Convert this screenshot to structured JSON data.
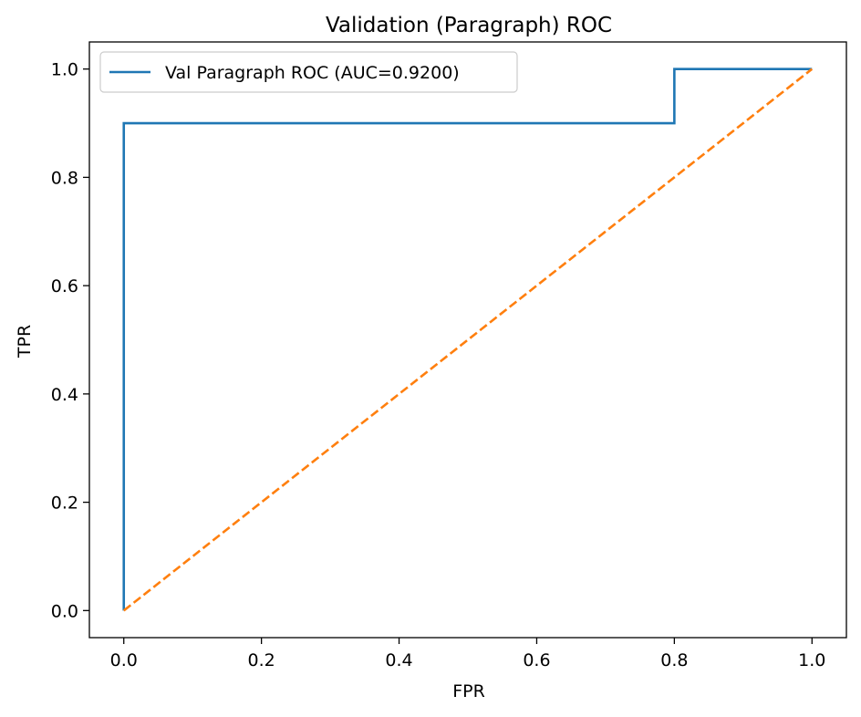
{
  "chart_data": {
    "type": "line",
    "title": "Validation (Paragraph) ROC",
    "xlabel": "FPR",
    "ylabel": "TPR",
    "xlim": [
      -0.05,
      1.05
    ],
    "ylim": [
      -0.05,
      1.05
    ],
    "xticks": [
      0.0,
      0.2,
      0.4,
      0.6,
      0.8,
      1.0
    ],
    "xtick_labels": [
      "0.0",
      "0.2",
      "0.4",
      "0.6",
      "0.8",
      "1.0"
    ],
    "yticks": [
      0.0,
      0.2,
      0.4,
      0.6,
      0.8,
      1.0
    ],
    "ytick_labels": [
      "0.0",
      "0.2",
      "0.4",
      "0.6",
      "0.8",
      "1.0"
    ],
    "grid": false,
    "legend_position": "top-left",
    "series": [
      {
        "name": "Val Paragraph ROC (AUC=0.9200)",
        "color": "#1f77b4",
        "line_style": "solid",
        "show_in_legend": true,
        "x": [
          0.0,
          0.0,
          0.0,
          0.8,
          0.8,
          1.0
        ],
        "y": [
          0.0,
          0.9,
          0.9,
          0.9,
          1.0,
          1.0
        ]
      },
      {
        "color": "#ff7f0e",
        "line_style": "dashed",
        "show_in_legend": false,
        "x": [
          0.0,
          1.0
        ],
        "y": [
          0.0,
          1.0
        ]
      }
    ]
  }
}
